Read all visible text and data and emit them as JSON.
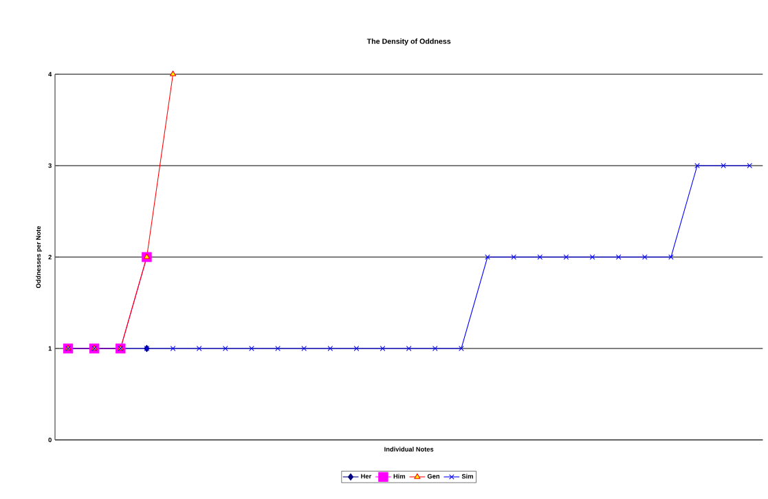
{
  "chart_data": {
    "type": "line",
    "title": "The Density of Oddness",
    "xlabel": "Individual Notes",
    "ylabel": "Oddnesses per Note",
    "categories": [
      null,
      null,
      null,
      null,
      null,
      null,
      null,
      null,
      null,
      null,
      null,
      null,
      null,
      null,
      null,
      null,
      null,
      null,
      null,
      null,
      null,
      null,
      null,
      null,
      null,
      null,
      null
    ],
    "series": [
      {
        "name": "Her",
        "color": "#000080",
        "marker": "diamond",
        "values": [
          null,
          null,
          null,
          1,
          null,
          null,
          null,
          null,
          null,
          null,
          null,
          null,
          null,
          null,
          null,
          null,
          null,
          null,
          null,
          null,
          null,
          null,
          null,
          null,
          null,
          null,
          null
        ]
      },
      {
        "name": "Him",
        "color": "#ff00ff",
        "marker": "square",
        "values": [
          1,
          1,
          1,
          2,
          null,
          null,
          null,
          null,
          null,
          null,
          null,
          null,
          null,
          null,
          null,
          null,
          null,
          null,
          null,
          null,
          null,
          null,
          null,
          null,
          null,
          null,
          null
        ]
      },
      {
        "name": "Gen",
        "color": "#ff0000",
        "marker": "triangle",
        "values": [
          1,
          1,
          1,
          2,
          4,
          null,
          null,
          null,
          null,
          null,
          null,
          null,
          null,
          null,
          null,
          null,
          null,
          null,
          null,
          null,
          null,
          null,
          null,
          null,
          null,
          null,
          null
        ]
      },
      {
        "name": "Sim",
        "color": "#0000ff",
        "marker": "cross",
        "values": [
          1,
          1,
          1,
          1,
          1,
          1,
          1,
          1,
          1,
          1,
          1,
          1,
          1,
          1,
          1,
          1,
          2,
          2,
          2,
          2,
          2,
          2,
          2,
          2,
          3,
          3,
          3
        ]
      }
    ],
    "ylim": [
      0,
      4
    ],
    "yticks": [
      0,
      1,
      2,
      3,
      4
    ],
    "grid": "y",
    "legend": "bottom"
  }
}
